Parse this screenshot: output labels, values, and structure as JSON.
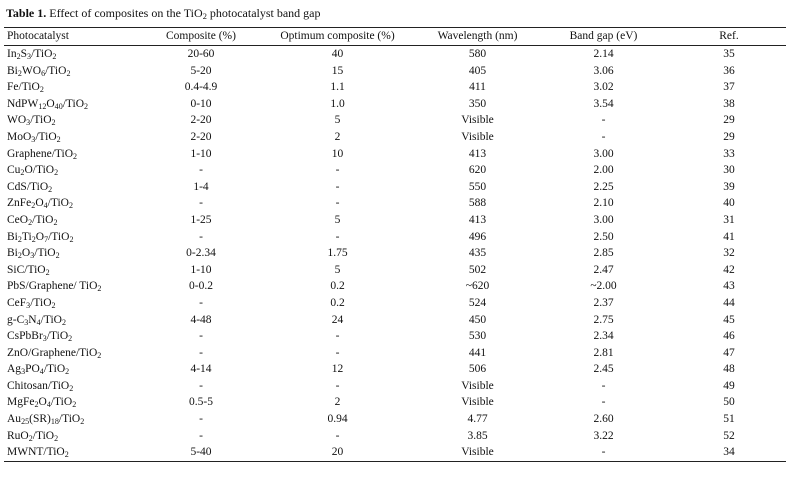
{
  "caption": {
    "label": "Table 1.",
    "text_parts": [
      "Effect of composites on the TiO",
      "2",
      " photocatalyst band gap"
    ]
  },
  "columns": [
    "Photocatalyst",
    "Composite (%)",
    "Optimum composite (%)",
    "Wavelength (nm)",
    "Band gap (eV)",
    "Ref."
  ],
  "rows": [
    {
      "photocatalyst": [
        [
          "In",
          ""
        ],
        [
          "2",
          "sub"
        ],
        [
          "S",
          ""
        ],
        [
          "3",
          "sub"
        ],
        [
          "/TiO",
          ""
        ],
        [
          "2",
          "sub"
        ]
      ],
      "composite": "20-60",
      "optimum": "40",
      "wavelength": "580",
      "band_gap": "2.14",
      "ref": "35"
    },
    {
      "photocatalyst": [
        [
          "Bi",
          ""
        ],
        [
          "2",
          "sub"
        ],
        [
          "WO",
          ""
        ],
        [
          "6",
          "sub"
        ],
        [
          "/TiO",
          ""
        ],
        [
          "2",
          "sub"
        ]
      ],
      "composite": "5-20",
      "optimum": "15",
      "wavelength": "405",
      "band_gap": "3.06",
      "ref": "36"
    },
    {
      "photocatalyst": [
        [
          "Fe/TiO",
          ""
        ],
        [
          "2",
          "sub"
        ]
      ],
      "composite": "0.4-4.9",
      "optimum": "1.1",
      "wavelength": "411",
      "band_gap": "3.02",
      "ref": "37"
    },
    {
      "photocatalyst": [
        [
          "NdPW",
          ""
        ],
        [
          "12",
          "sub"
        ],
        [
          "O",
          ""
        ],
        [
          "40",
          "sub"
        ],
        [
          "/TiO",
          ""
        ],
        [
          "2",
          "sub"
        ]
      ],
      "composite": "0-10",
      "optimum": "1.0",
      "wavelength": "350",
      "band_gap": "3.54",
      "ref": "38"
    },
    {
      "photocatalyst": [
        [
          "WO",
          ""
        ],
        [
          "3",
          "sub"
        ],
        [
          "/TiO",
          ""
        ],
        [
          "2",
          "sub"
        ]
      ],
      "composite": "2-20",
      "optimum": "5",
      "wavelength": "Visible",
      "band_gap": "-",
      "ref": "29"
    },
    {
      "photocatalyst": [
        [
          "MoO",
          ""
        ],
        [
          "3",
          "sub"
        ],
        [
          "/TiO",
          ""
        ],
        [
          "2",
          "sub"
        ]
      ],
      "composite": "2-20",
      "optimum": "2",
      "wavelength": "Visible",
      "band_gap": "-",
      "ref": "29"
    },
    {
      "photocatalyst": [
        [
          "Graphene/TiO",
          ""
        ],
        [
          "2",
          "sub"
        ]
      ],
      "composite": "1-10",
      "optimum": "10",
      "wavelength": "413",
      "band_gap": "3.00",
      "ref": "33"
    },
    {
      "photocatalyst": [
        [
          "Cu",
          ""
        ],
        [
          "2",
          "sub"
        ],
        [
          "O/TiO",
          ""
        ],
        [
          "2",
          "sub"
        ]
      ],
      "composite": "-",
      "optimum": "-",
      "wavelength": "620",
      "band_gap": "2.00",
      "ref": "30"
    },
    {
      "photocatalyst": [
        [
          "CdS/TiO",
          ""
        ],
        [
          "2",
          "sub"
        ]
      ],
      "composite": "1-4",
      "optimum": "-",
      "wavelength": "550",
      "band_gap": "2.25",
      "ref": "39"
    },
    {
      "photocatalyst": [
        [
          "ZnFe",
          ""
        ],
        [
          "2",
          "sub"
        ],
        [
          "O",
          ""
        ],
        [
          "4",
          "sub"
        ],
        [
          "/TiO",
          ""
        ],
        [
          "2",
          "sub"
        ]
      ],
      "composite": "-",
      "optimum": "-",
      "wavelength": "588",
      "band_gap": "2.10",
      "ref": "40"
    },
    {
      "photocatalyst": [
        [
          "CeO",
          ""
        ],
        [
          "2",
          "sub"
        ],
        [
          "/TiO",
          ""
        ],
        [
          "2",
          "sub"
        ]
      ],
      "composite": "1-25",
      "optimum": "5",
      "wavelength": "413",
      "band_gap": "3.00",
      "ref": "31"
    },
    {
      "photocatalyst": [
        [
          "Bi",
          ""
        ],
        [
          "2",
          "sub"
        ],
        [
          "Ti",
          ""
        ],
        [
          "2",
          "sub"
        ],
        [
          "O",
          ""
        ],
        [
          "7",
          "sub"
        ],
        [
          "/TiO",
          ""
        ],
        [
          "2",
          "sub"
        ]
      ],
      "composite": "-",
      "optimum": "-",
      "wavelength": "496",
      "band_gap": "2.50",
      "ref": "41"
    },
    {
      "photocatalyst": [
        [
          "Bi",
          ""
        ],
        [
          "2",
          "sub"
        ],
        [
          "O",
          ""
        ],
        [
          "3",
          "sub"
        ],
        [
          "/TiO",
          ""
        ],
        [
          "2",
          "sub"
        ]
      ],
      "composite": "0-2.34",
      "optimum": "1.75",
      "wavelength": "435",
      "band_gap": "2.85",
      "ref": "32"
    },
    {
      "photocatalyst": [
        [
          "SiC/TiO",
          ""
        ],
        [
          "2",
          "sub"
        ]
      ],
      "composite": "1-10",
      "optimum": "5",
      "wavelength": "502",
      "band_gap": "2.47",
      "ref": "42"
    },
    {
      "photocatalyst": [
        [
          "PbS/Graphene/ TiO",
          ""
        ],
        [
          "2",
          "sub"
        ]
      ],
      "composite": "0-0.2",
      "optimum": "0.2",
      "wavelength": "~620",
      "band_gap": "~2.00",
      "ref": "43"
    },
    {
      "photocatalyst": [
        [
          "CeF",
          ""
        ],
        [
          "3",
          "sub"
        ],
        [
          "/TiO",
          ""
        ],
        [
          "2",
          "sub"
        ]
      ],
      "composite": "-",
      "optimum": "0.2",
      "wavelength": "524",
      "band_gap": "2.37",
      "ref": "44"
    },
    {
      "photocatalyst": [
        [
          "g-C",
          ""
        ],
        [
          "3",
          "sub"
        ],
        [
          "N",
          ""
        ],
        [
          "4",
          "sub"
        ],
        [
          "/TiO",
          ""
        ],
        [
          "2",
          "sub"
        ]
      ],
      "composite": "4-48",
      "optimum": "24",
      "wavelength": "450",
      "band_gap": "2.75",
      "ref": "45"
    },
    {
      "photocatalyst": [
        [
          "CsPbBr",
          ""
        ],
        [
          "3",
          "sub"
        ],
        [
          "/TiO",
          ""
        ],
        [
          "2",
          "sub"
        ]
      ],
      "composite": "-",
      "optimum": "-",
      "wavelength": "530",
      "band_gap": "2.34",
      "ref": "46"
    },
    {
      "photocatalyst": [
        [
          "ZnO/Graphene/TiO",
          ""
        ],
        [
          "2",
          "sub"
        ]
      ],
      "composite": "-",
      "optimum": "-",
      "wavelength": "441",
      "band_gap": "2.81",
      "ref": "47"
    },
    {
      "photocatalyst": [
        [
          "Ag",
          ""
        ],
        [
          "3",
          "sub"
        ],
        [
          "PO",
          ""
        ],
        [
          "4",
          "sub"
        ],
        [
          "/TiO",
          ""
        ],
        [
          "2",
          "sub"
        ]
      ],
      "composite": "4-14",
      "optimum": "12",
      "wavelength": "506",
      "band_gap": "2.45",
      "ref": "48"
    },
    {
      "photocatalyst": [
        [
          "Chitosan/TiO",
          ""
        ],
        [
          "2",
          "sub"
        ]
      ],
      "composite": "-",
      "optimum": "-",
      "wavelength": "Visible",
      "band_gap": "-",
      "ref": "49"
    },
    {
      "photocatalyst": [
        [
          "MgFe",
          ""
        ],
        [
          "2",
          "sub"
        ],
        [
          "O",
          ""
        ],
        [
          "4",
          "sub"
        ],
        [
          "/TiO",
          ""
        ],
        [
          "2",
          "sub"
        ]
      ],
      "composite": "0.5-5",
      "optimum": "2",
      "wavelength": "Visible",
      "band_gap": "-",
      "ref": "50"
    },
    {
      "photocatalyst": [
        [
          "Au",
          ""
        ],
        [
          "25",
          "sub"
        ],
        [
          "(SR)",
          ""
        ],
        [
          "18",
          "sub"
        ],
        [
          "/TiO",
          ""
        ],
        [
          "2",
          "sub"
        ]
      ],
      "composite": "-",
      "optimum": "0.94",
      "wavelength": "4.77",
      "band_gap": "2.60",
      "ref": "51"
    },
    {
      "photocatalyst": [
        [
          "RuO",
          ""
        ],
        [
          "2",
          "sub"
        ],
        [
          "/TiO",
          ""
        ],
        [
          "2",
          "sub"
        ]
      ],
      "composite": "-",
      "optimum": "-",
      "wavelength": "3.85",
      "band_gap": "3.22",
      "ref": "52"
    },
    {
      "photocatalyst": [
        [
          "MWNT/TiO",
          ""
        ],
        [
          "2",
          "sub"
        ]
      ],
      "composite": "5-40",
      "optimum": "20",
      "wavelength": "Visible",
      "band_gap": "-",
      "ref": "34"
    }
  ]
}
